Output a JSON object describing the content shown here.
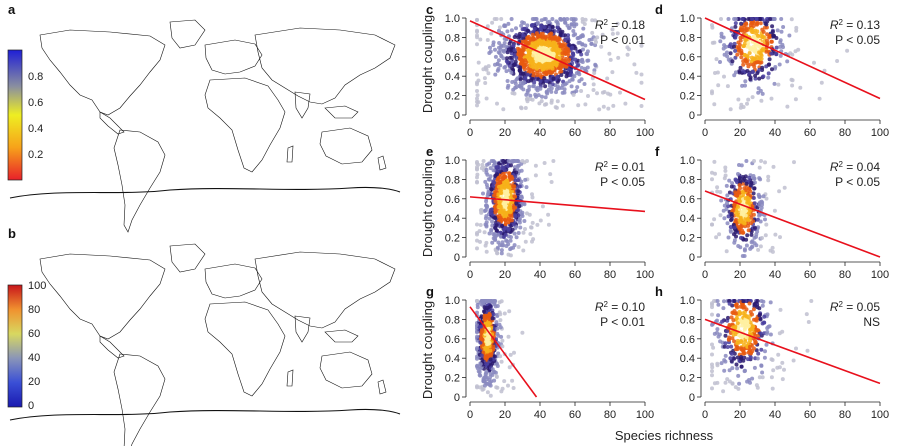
{
  "figure": {
    "panel_letters": [
      "a",
      "b",
      "c",
      "d",
      "e",
      "f",
      "g",
      "h"
    ],
    "map_a": {
      "colorbar_ticks": [
        "0.8",
        "0.6",
        "0.4",
        "0.2"
      ],
      "colors": [
        "#e8202a",
        "#f7a21a",
        "#eeee22",
        "#8a8fa0",
        "#1f1fd6"
      ]
    },
    "map_b": {
      "colorbar_ticks": [
        "100",
        "80",
        "60",
        "40",
        "20",
        "0"
      ],
      "colors": [
        "#c8151b",
        "#f0912f",
        "#d8d860",
        "#8a95b8",
        "#3a4fd6",
        "#1a1ab0"
      ]
    },
    "ylabel": "Drought coupling",
    "xlabel": "Species richness",
    "x_ticks": [
      "0",
      "20",
      "40",
      "60",
      "80",
      "100"
    ],
    "y_ticks": [
      "0",
      "0.2",
      "0.4",
      "0.6",
      "0.8",
      "1.0"
    ],
    "line_color": "#e8101c",
    "point_colors": [
      "#2a1a6e",
      "#4a3fa0",
      "#8a8ac0",
      "#c0c0d0",
      "#e85a10",
      "#f7b21a",
      "#fff0a0"
    ]
  },
  "chart_data": [
    {
      "panel": "c",
      "type": "scatter",
      "stat_r2": "0.18",
      "stat_p": "P < 0.01",
      "xlim": [
        0,
        100
      ],
      "ylim": [
        0,
        1
      ],
      "line": {
        "x": [
          0,
          100
        ],
        "y": [
          0.97,
          0.16
        ]
      },
      "cluster": {
        "cx": 42,
        "cy": 0.62,
        "sx": 12,
        "sy": 0.18
      }
    },
    {
      "panel": "d",
      "type": "scatter",
      "stat_r2": "0.13",
      "stat_p": "P < 0.05",
      "xlim": [
        0,
        100
      ],
      "ylim": [
        0,
        1
      ],
      "line": {
        "x": [
          0,
          100
        ],
        "y": [
          1.0,
          0.17
        ]
      },
      "cluster": {
        "cx": 28,
        "cy": 0.72,
        "sx": 8,
        "sy": 0.2
      }
    },
    {
      "panel": "e",
      "type": "scatter",
      "stat_r2": "0.01",
      "stat_p": "P < 0.05",
      "xlim": [
        0,
        100
      ],
      "ylim": [
        0,
        1
      ],
      "line": {
        "x": [
          0,
          100
        ],
        "y": [
          0.62,
          0.47
        ]
      },
      "cluster": {
        "cx": 20,
        "cy": 0.6,
        "sx": 5,
        "sy": 0.22
      }
    },
    {
      "panel": "f",
      "type": "scatter",
      "stat_r2": "0.04",
      "stat_p": "P < 0.05",
      "xlim": [
        0,
        100
      ],
      "ylim": [
        0,
        1
      ],
      "line": {
        "x": [
          0,
          100
        ],
        "y": [
          0.68,
          0.0
        ]
      },
      "cluster": {
        "cx": 22,
        "cy": 0.5,
        "sx": 5,
        "sy": 0.2
      }
    },
    {
      "panel": "g",
      "type": "scatter",
      "stat_r2": "0.10",
      "stat_p": "P < 0.01",
      "xlim": [
        0,
        100
      ],
      "ylim": [
        0,
        1
      ],
      "line": {
        "x": [
          0,
          38
        ],
        "y": [
          0.93,
          0.0
        ]
      },
      "cluster": {
        "cx": 10,
        "cy": 0.62,
        "sx": 3,
        "sy": 0.2
      }
    },
    {
      "panel": "h",
      "type": "scatter",
      "stat_r2": "0.05",
      "stat_p": "NS",
      "xlim": [
        0,
        100
      ],
      "ylim": [
        0,
        1
      ],
      "line": {
        "x": [
          0,
          100
        ],
        "y": [
          0.8,
          0.14
        ]
      },
      "cluster": {
        "cx": 22,
        "cy": 0.7,
        "sx": 7,
        "sy": 0.22
      }
    }
  ]
}
